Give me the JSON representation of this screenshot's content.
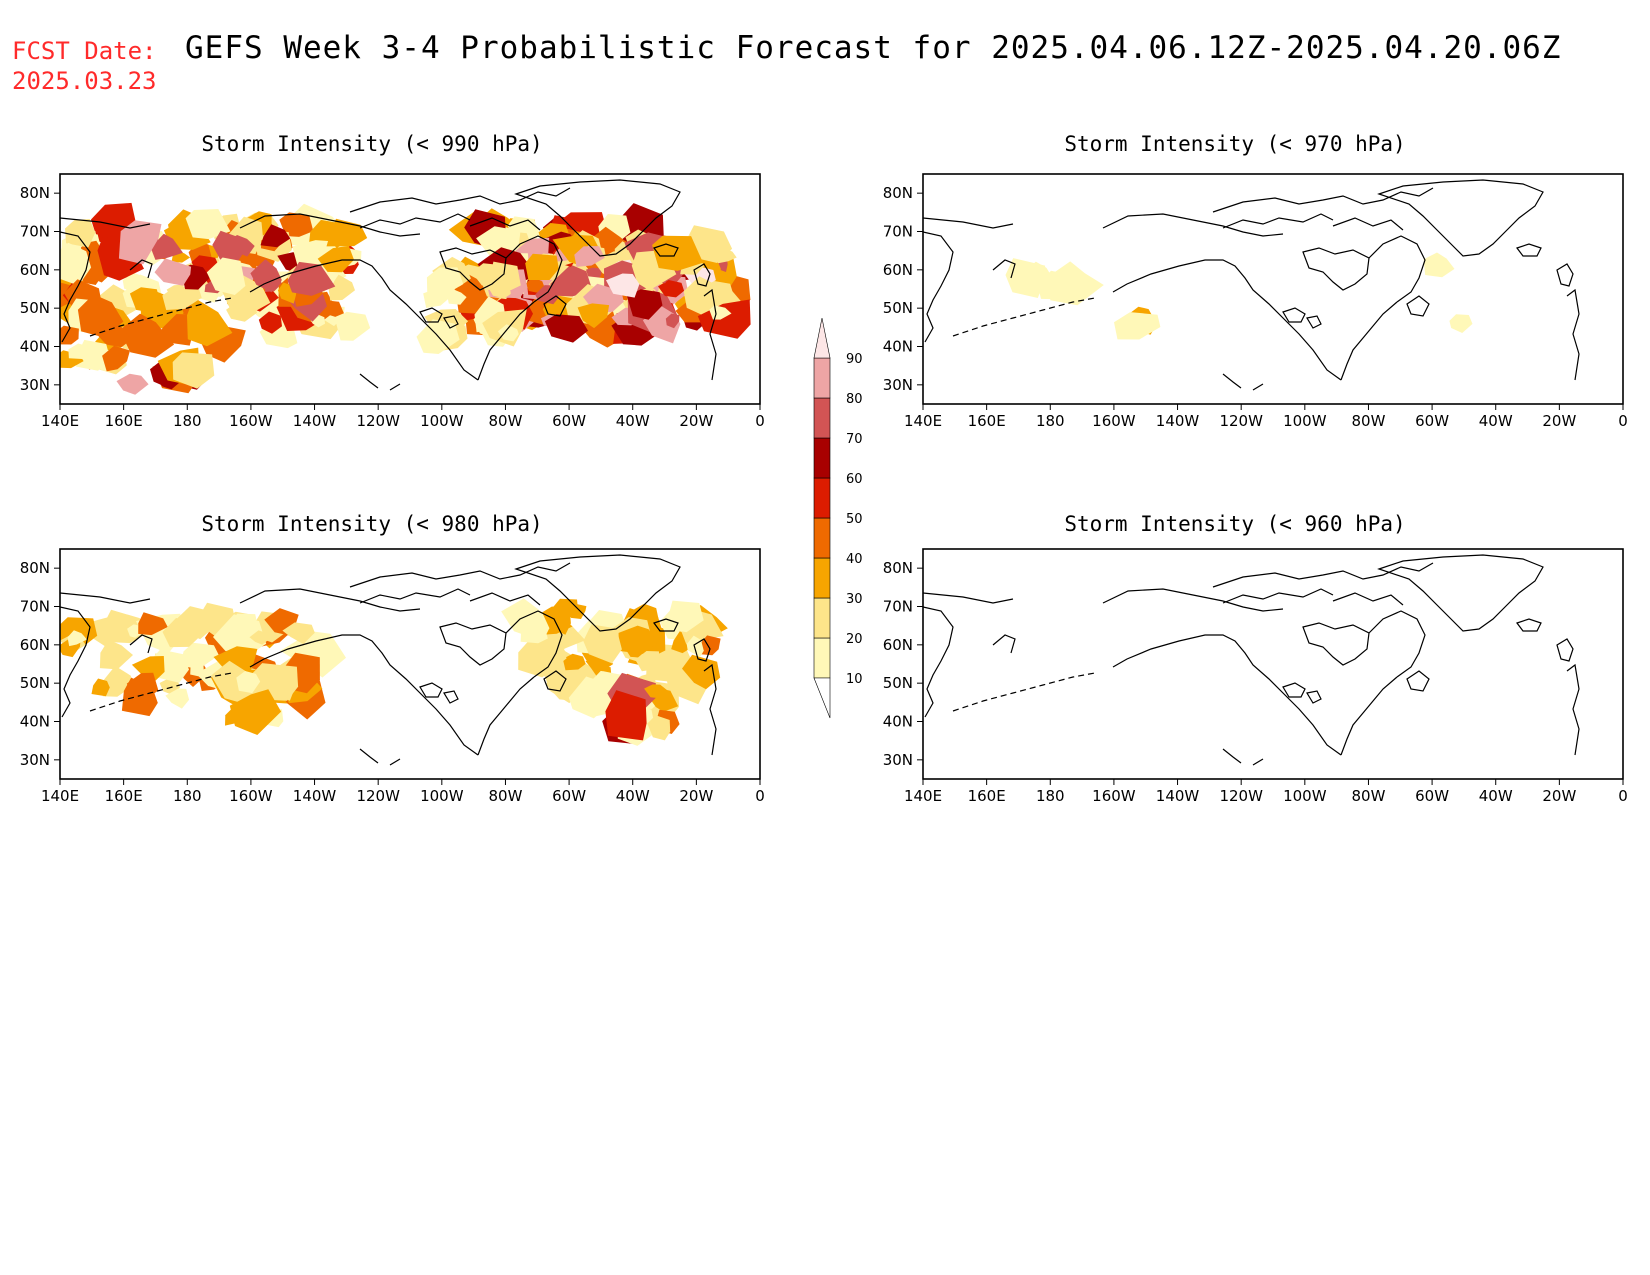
{
  "header": {
    "fcst_label": "FCST Date:",
    "fcst_date": "2025.03.23",
    "title": "GEFS Week 3-4 Probabilistic Forecast for 2025.04.06.12Z-2025.04.20.06Z"
  },
  "panels": [
    {
      "id": "p990",
      "title": "Storm Intensity (< 990 hPa)"
    },
    {
      "id": "p970",
      "title": "Storm Intensity (< 970 hPa)"
    },
    {
      "id": "p980",
      "title": "Storm Intensity (< 980 hPa)"
    },
    {
      "id": "p960",
      "title": "Storm Intensity (< 960 hPa)"
    }
  ],
  "axes": {
    "lat_labels": [
      "80N",
      "70N",
      "60N",
      "50N",
      "40N",
      "30N"
    ],
    "lat_values": [
      80,
      70,
      60,
      50,
      40,
      30
    ],
    "lon_labels": [
      "140E",
      "160E",
      "180",
      "160W",
      "140W",
      "120W",
      "100W",
      "80W",
      "60W",
      "40W",
      "20W",
      "0"
    ],
    "lat_range": [
      25,
      85
    ],
    "lon_range": [
      "140E",
      "0"
    ]
  },
  "colorbar": {
    "levels": [
      "10",
      "20",
      "30",
      "40",
      "50",
      "60",
      "70",
      "80",
      "90"
    ],
    "colors": [
      "#fff8b8",
      "#fde58a",
      "#f7a500",
      "#ef6a00",
      "#dc1c00",
      "#a80000",
      "#d25454",
      "#eea5a5",
      "#fde6e6"
    ]
  }
}
